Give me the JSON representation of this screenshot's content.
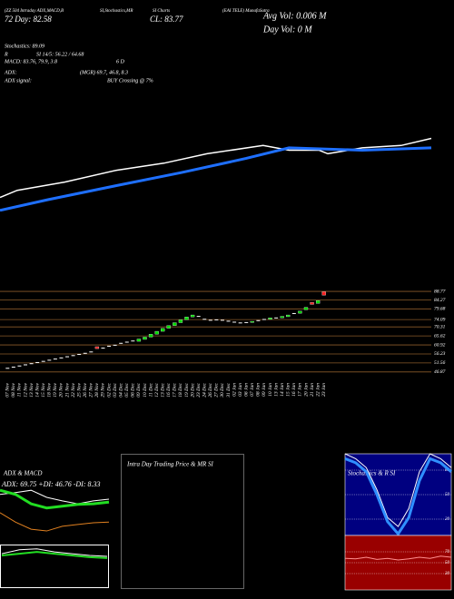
{
  "header": [
    "(ZZ 504 Intraday ADX,MACD,B",
    "SI,Stochastics,MR",
    "SI Charts",
    "(EAI TELE) MunafaSutra",
    "72  Day: 82.58",
    "CL: 83.77",
    "Avg Vol: 0.006  M",
    "Day Vol: 0  M",
    "Stochastics: 89.09",
    "R",
    "SI 14/5: 56.22 / 64.68",
    "MACD: 83.76, 79.9, 3.8",
    "6  D",
    "ADX:",
    "(MGR) 69.7, 46.8, 8.3",
    "ADX  signal:",
    "BUY Crossing @ 7%"
  ],
  "chart_data": [
    {
      "type": "candlestick",
      "categories": [
        "07 Nov",
        "08 Nov",
        "11 Nov",
        "12 Nov",
        "13 Nov",
        "14 Nov",
        "15 Nov",
        "18 Nov",
        "19 Nov",
        "20 Nov",
        "21 Nov",
        "22 Nov",
        "25 Nov",
        "26 Nov",
        "27 Nov",
        "28 Nov",
        "29 Nov",
        "02 Dec",
        "03 Dec",
        "04 Dec",
        "05 Dec",
        "06 Dec",
        "09 Dec",
        "10 Dec",
        "11 Dec",
        "12 Dec",
        "13 Dec",
        "16 Dec",
        "17 Dec",
        "18 Dec",
        "19 Dec",
        "20 Dec",
        "23 Dec",
        "24 Dec",
        "26 Dec",
        "27 Dec",
        "30 Dec",
        "31 Dec",
        "02 Jan",
        "03 Jan",
        "06 Jan",
        "07 Jan",
        "08 Jan",
        "09 Jan",
        "10 Jan",
        "13 Jan",
        "14 Jan",
        "15 Jan",
        "16 Jan",
        "17 Jan",
        "20 Jan",
        "21 Jan",
        "22 Jan",
        "23 Jan"
      ],
      "open": [
        49.0,
        49.6,
        50.2,
        50.8,
        51.4,
        52.0,
        52.6,
        53.2,
        53.8,
        54.4,
        55.0,
        55.6,
        56.2,
        56.8,
        57.5,
        60.0,
        59.5,
        60.5,
        61.0,
        62.0,
        62.6,
        63.2,
        62.8,
        63.8,
        65.0,
        66.5,
        68.0,
        69.6,
        71.0,
        72.5,
        74.0,
        75.5,
        76.0,
        74.5,
        74.0,
        74.2,
        74.0,
        73.5,
        73.0,
        72.6,
        72.8,
        72.6,
        73.8,
        74.4,
        74.2,
        75.2,
        75.0,
        75.6,
        77.5,
        77.4,
        79.2,
        83.0,
        82.5,
        88.6
      ],
      "close": [
        49.0,
        49.6,
        50.2,
        50.8,
        51.4,
        52.0,
        52.6,
        53.2,
        53.8,
        54.4,
        55.0,
        55.6,
        56.2,
        56.8,
        57.5,
        59.0,
        59.5,
        60.5,
        61.0,
        62.0,
        62.6,
        63.2,
        64.0,
        65.0,
        66.5,
        68.0,
        69.5,
        71.0,
        72.5,
        74.0,
        75.5,
        76.5,
        76.0,
        74.5,
        74.0,
        74.2,
        74.0,
        73.5,
        73.0,
        72.6,
        72.8,
        73.2,
        73.8,
        74.4,
        75.0,
        75.2,
        75.8,
        76.5,
        77.5,
        78.5,
        80.5,
        82.0,
        84.0,
        86.8
      ],
      "up_color": "#00dd00",
      "down_color": "#ff2222",
      "flat_color": "#ffffff",
      "grid_color": "#8a5a2a",
      "ylim": [
        43,
        94
      ],
      "yticks": [
        88.77,
        84.27,
        79.68,
        74.09,
        70.31,
        65.62,
        60.92,
        56.23,
        51.56,
        46.87
      ]
    },
    {
      "type": "line",
      "xlim": [
        0,
        100
      ],
      "ylim": [
        0,
        100
      ],
      "series": [
        {
          "color": "#ffffff",
          "width": 1.5,
          "x": [
            0,
            4,
            15,
            27,
            38,
            48,
            61,
            67,
            74,
            76,
            84,
            93,
            100
          ],
          "values": [
            25,
            31,
            38,
            48,
            54,
            62,
            69,
            65,
            65,
            62,
            67,
            69,
            75
          ]
        },
        {
          "color": "#1e6fff",
          "width": 3,
          "x": [
            0,
            11,
            27,
            42,
            57,
            67,
            84,
            100
          ],
          "values": [
            14,
            23,
            35,
            46,
            58,
            67,
            65,
            67
          ]
        }
      ]
    },
    {
      "type": "line",
      "title": "ADX  & MACD",
      "subtitle": "ADX: 69.75 +DI: 46.76 -DI: 8.33",
      "xlim": [
        0,
        7
      ],
      "ylim": [
        0,
        100
      ],
      "series": [
        {
          "color": "#ffffff",
          "width": 1,
          "x": [
            0,
            1,
            2,
            3,
            4,
            5,
            6,
            7
          ],
          "values": [
            85,
            88,
            92,
            80,
            74,
            69,
            74,
            77
          ]
        },
        {
          "color": "#22dd22",
          "width": 3,
          "x": [
            0,
            1,
            2,
            3,
            4,
            5,
            6,
            7
          ],
          "values": [
            92,
            85,
            69,
            62,
            65,
            68,
            69,
            72
          ]
        },
        {
          "color": "#e08020",
          "width": 1,
          "x": [
            0,
            1,
            2,
            3,
            4,
            5,
            6,
            7
          ],
          "values": [
            54,
            38,
            26,
            23,
            31,
            34,
            37,
            38
          ]
        }
      ]
    },
    {
      "type": "line",
      "xlim": [
        0,
        6
      ],
      "ylim": [
        0,
        100
      ],
      "series": [
        {
          "color": "#ffffff",
          "width": 1,
          "x": [
            0,
            1,
            2,
            3,
            4,
            5,
            6
          ],
          "values": [
            79,
            88,
            90,
            83,
            79,
            75,
            73
          ]
        },
        {
          "color": "#22dd22",
          "width": 2,
          "x": [
            0,
            1,
            2,
            3,
            4,
            5,
            6
          ],
          "values": [
            75,
            79,
            83,
            79,
            75,
            71,
            69
          ]
        }
      ]
    },
    {
      "type": "line",
      "title": "Intra Day Trading Price  & MR          SI",
      "xlim": [
        0,
        1
      ],
      "ylim": [
        0,
        1
      ],
      "series": []
    },
    {
      "type": "line",
      "title": "Stochastics & R          SI",
      "background": "#000080",
      "xlim": [
        0,
        10
      ],
      "ylim": [
        0,
        100
      ],
      "yticks": [
        80,
        50,
        20
      ],
      "series": [
        {
          "color": "#ffffff",
          "width": 1,
          "x": [
            0,
            1,
            2,
            3,
            4,
            5,
            6,
            7,
            8,
            9,
            10
          ],
          "values": [
            100,
            94,
            83,
            56,
            22,
            11,
            33,
            78,
            100,
            94,
            83
          ]
        },
        {
          "color": "#2f8fff",
          "width": 3,
          "x": [
            0,
            1,
            2,
            3,
            4,
            5,
            6,
            7,
            8,
            9,
            10
          ],
          "values": [
            94,
            89,
            78,
            50,
            17,
            2,
            22,
            67,
            94,
            89,
            78
          ]
        }
      ]
    },
    {
      "type": "line",
      "background": "#990000",
      "xlim": [
        0,
        10
      ],
      "ylim": [
        0,
        100
      ],
      "yticks": [
        70,
        50,
        30
      ],
      "series": [
        {
          "color": "#ff9090",
          "width": 1,
          "x": [
            0,
            1,
            2,
            3,
            4,
            5,
            6,
            7,
            8,
            9,
            10
          ],
          "values": [
            58,
            57,
            60,
            56,
            58,
            55,
            57,
            60,
            58,
            62,
            60
          ]
        }
      ]
    }
  ]
}
